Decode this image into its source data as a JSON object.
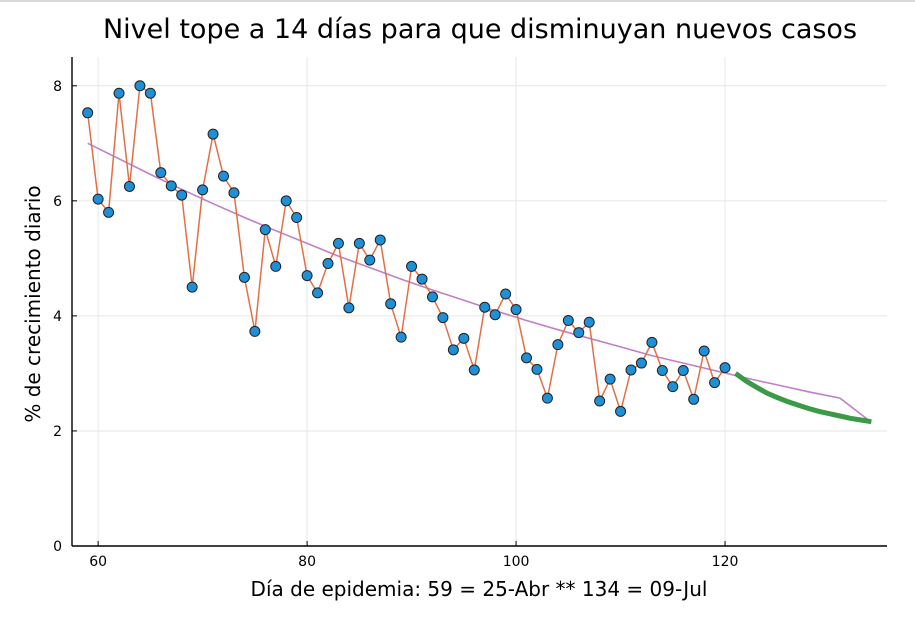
{
  "chart_data": {
    "type": "line",
    "title": "Nivel tope a 14 días para que disminuyan nuevos casos",
    "xlabel": "Día de epidemia: 59 = 25-Abr ** 134 = 09-Jul",
    "ylabel": "% de crecimiento diario",
    "xlim": [
      57.5,
      135.5
    ],
    "ylim": [
      0,
      8.5
    ],
    "xticks": [
      60,
      80,
      100,
      120
    ],
    "yticks": [
      0,
      2,
      4,
      6,
      8
    ],
    "grid": true,
    "legend": "none",
    "colors": {
      "observed_line": "#e26f46",
      "marker_fill": "#1f8fd6",
      "marker_edge": "#222222",
      "trend": "#c27fc6",
      "projection": "#3a9a45"
    },
    "series": [
      {
        "role": "observed",
        "x": [
          59,
          60,
          61,
          62,
          63,
          64,
          65,
          66,
          67,
          68,
          69,
          70,
          71,
          72,
          73,
          74,
          75,
          76,
          77,
          78,
          79,
          80,
          81,
          82,
          83,
          84,
          85,
          86,
          87,
          88,
          89,
          90,
          91,
          92,
          93,
          94,
          95,
          96,
          97,
          98,
          99,
          100,
          101,
          102,
          103,
          104,
          105,
          106,
          107,
          108,
          109,
          110,
          111,
          112,
          113,
          114,
          115,
          116,
          117,
          118,
          119,
          120
        ],
        "values": [
          7.53,
          6.03,
          5.8,
          7.87,
          6.25,
          8.0,
          7.87,
          6.49,
          6.26,
          6.1,
          4.5,
          6.19,
          7.16,
          6.43,
          6.14,
          4.67,
          3.73,
          5.5,
          4.86,
          6.0,
          5.71,
          4.7,
          4.4,
          4.91,
          5.26,
          4.14,
          5.26,
          4.97,
          5.32,
          4.21,
          3.63,
          4.86,
          4.64,
          4.33,
          3.97,
          3.41,
          3.61,
          3.06,
          4.15,
          4.02,
          4.38,
          4.11,
          3.27,
          3.07,
          2.57,
          3.5,
          3.92,
          3.71,
          3.89,
          2.52,
          2.9,
          2.34,
          3.06,
          3.18,
          3.54,
          3.05,
          2.77,
          3.05,
          2.55,
          3.39,
          2.84,
          3.1
        ]
      },
      {
        "role": "trend",
        "x": [
          59,
          62,
          65,
          68,
          71,
          74,
          77,
          80,
          83,
          86,
          89,
          92,
          95,
          98,
          101,
          104,
          107,
          110,
          113,
          116,
          119,
          122,
          125,
          128,
          131,
          134
        ],
        "values": [
          7.0,
          6.73,
          6.46,
          6.2,
          5.95,
          5.71,
          5.48,
          5.26,
          5.04,
          4.84,
          4.64,
          4.45,
          4.27,
          4.09,
          3.92,
          3.76,
          3.61,
          3.46,
          3.31,
          3.18,
          3.05,
          2.92,
          2.8,
          2.68,
          2.57,
          2.15
        ]
      },
      {
        "role": "projection",
        "x": [
          121,
          122,
          123,
          124,
          125,
          126,
          127,
          128,
          129,
          130,
          131,
          132,
          133,
          134
        ],
        "values": [
          3.0,
          2.87,
          2.76,
          2.66,
          2.58,
          2.51,
          2.45,
          2.39,
          2.34,
          2.3,
          2.26,
          2.22,
          2.19,
          2.16
        ]
      }
    ]
  }
}
